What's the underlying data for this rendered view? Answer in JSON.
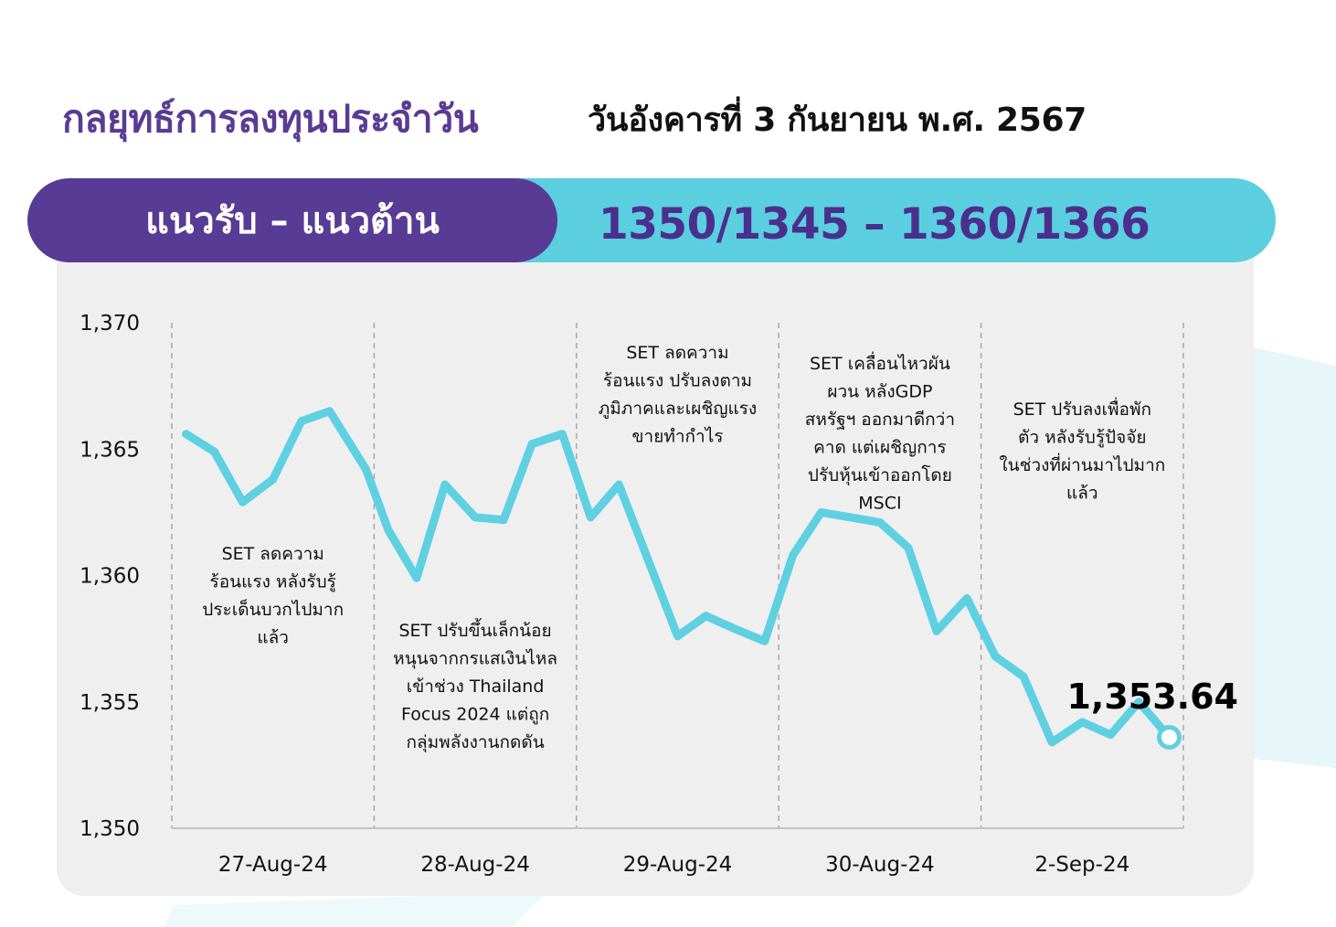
{
  "header": {
    "title": "กลยุทธ์การลงทุนประจำวัน",
    "date": "วันอังคารที่ 3 กันยายน พ.ศ. 2567"
  },
  "banner": {
    "label": "แนวรับ – แนวต้าน",
    "value": "1350/1345  –  1360/1366"
  },
  "colors": {
    "purple": "#573b95",
    "cyan": "#5bcfdf",
    "panel": "#efeff0",
    "line": "#5fd0e1"
  },
  "chart_data": {
    "type": "line",
    "ylim": [
      1350,
      1370
    ],
    "yticks": [
      1370,
      1365,
      1360,
      1355,
      1350
    ],
    "ytick_labels": [
      "1,370",
      "1,365",
      "1,360",
      "1,355",
      "1,350"
    ],
    "categories": [
      "27-Aug-24",
      "28-Aug-24",
      "29-Aug-24",
      "30-Aug-24",
      "2-Sep-24"
    ],
    "grid": "vertical dashed separators between days",
    "series": [
      {
        "values": [
          [
            0.07,
            1365.6
          ],
          [
            0.21,
            1364.9
          ],
          [
            0.35,
            1362.9
          ],
          [
            0.5,
            1363.8
          ],
          [
            0.64,
            1366.1
          ],
          [
            0.78,
            1366.5
          ],
          [
            0.96,
            1364.2
          ],
          [
            1.07,
            1361.8
          ],
          [
            1.21,
            1359.9
          ],
          [
            1.35,
            1363.6
          ],
          [
            1.5,
            1362.3
          ],
          [
            1.64,
            1362.2
          ],
          [
            1.78,
            1365.2
          ],
          [
            1.93,
            1365.6
          ],
          [
            2.07,
            1362.3
          ],
          [
            2.21,
            1363.6
          ],
          [
            2.5,
            1357.6
          ],
          [
            2.64,
            1358.4
          ],
          [
            2.78,
            1357.9
          ],
          [
            2.93,
            1357.4
          ],
          [
            3.07,
            1360.8
          ],
          [
            3.21,
            1362.5
          ],
          [
            3.5,
            1362.1
          ],
          [
            3.64,
            1361.1
          ],
          [
            3.78,
            1357.8
          ],
          [
            3.93,
            1359.1
          ],
          [
            4.07,
            1356.8
          ],
          [
            4.21,
            1356.0
          ],
          [
            4.35,
            1353.4
          ],
          [
            4.5,
            1354.2
          ],
          [
            4.64,
            1353.7
          ],
          [
            4.78,
            1355.0
          ],
          [
            4.93,
            1353.6
          ]
        ]
      }
    ],
    "annotations": [
      {
        "day": 0,
        "lines": [
          "SET ลดความ",
          "ร้อนแรง หลังรับรู้",
          "ประเด็นบวกไปมาก",
          "แล้ว"
        ]
      },
      {
        "day": 1,
        "lines": [
          "SET ปรับขึ้นเล็กน้อย",
          "หนุนจากกรแสเงินไหล",
          "เข้าช่วง Thailand",
          "Focus 2024 แต่ถูก",
          "กลุ่มพลังงานกดดัน"
        ]
      },
      {
        "day": 2,
        "lines": [
          "SET ลดความ",
          "ร้อนแรง ปรับลงตาม",
          "ภูมิภาคและเผชิญแรง",
          "ขายทำกำไร"
        ]
      },
      {
        "day": 3,
        "lines": [
          "SET เคลื่อนไหวผัน",
          "ผวน หลังGDP",
          "สหรัฐฯ ออกมาดีกว่า",
          "คาด แต่เผชิญการ",
          "ปรับหุ้นเข้าออกโดย",
          "MSCI"
        ]
      },
      {
        "day": 4,
        "lines": [
          "SET ปรับลงเพื่อพัก",
          "ตัว หลังรับรู้ปัจจัย",
          "ในช่วงที่ผ่านมาไปมาก",
          "แล้ว"
        ]
      }
    ],
    "last_value": 1353.64,
    "last_value_label": "1,353.64"
  }
}
